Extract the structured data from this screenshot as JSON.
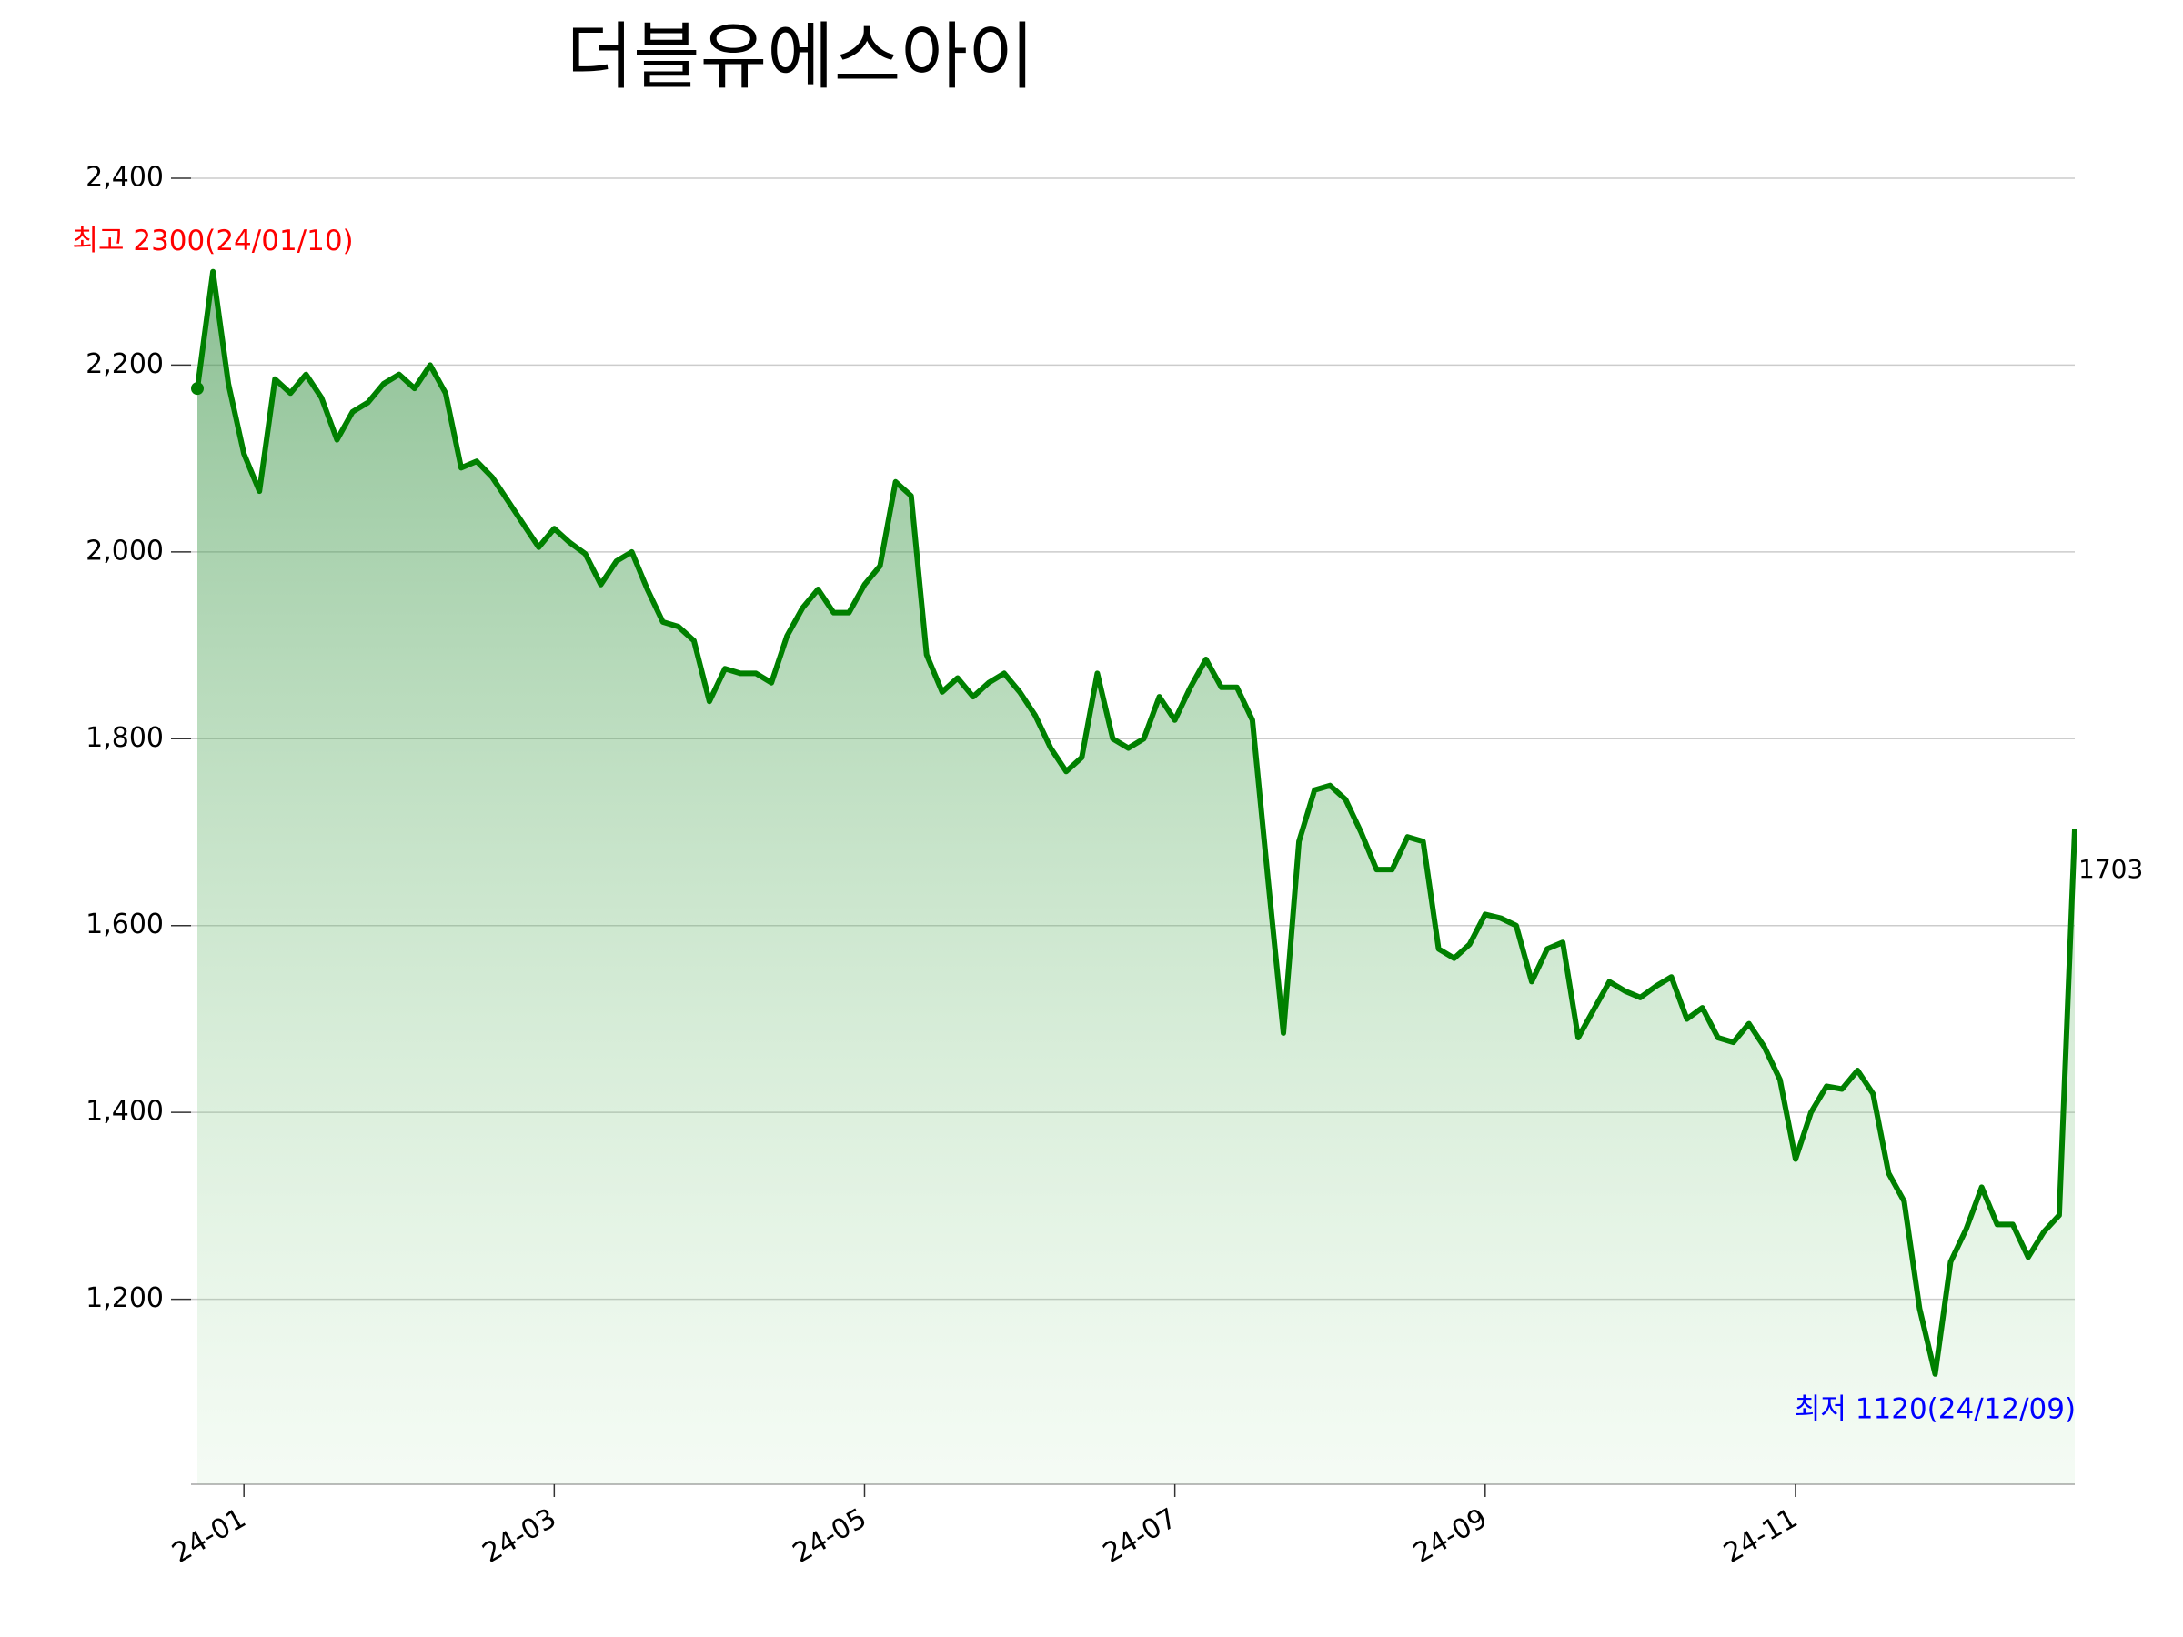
{
  "chart_data": {
    "type": "line",
    "title": "더블유에스아이",
    "categories": [
      null,
      null,
      null,
      "24-01",
      null,
      null,
      null,
      null,
      null,
      null,
      null,
      null,
      null,
      null,
      null,
      null,
      null,
      null,
      null,
      null,
      null,
      null,
      null,
      "24-03",
      null,
      null,
      null,
      null,
      null,
      null,
      null,
      null,
      null,
      null,
      null,
      null,
      null,
      null,
      null,
      null,
      null,
      null,
      null,
      "24-05",
      null,
      null,
      null,
      null,
      null,
      null,
      null,
      null,
      null,
      null,
      null,
      null,
      null,
      null,
      null,
      null,
      null,
      null,
      null,
      "24-07",
      null,
      null,
      null,
      null,
      null,
      null,
      null,
      null,
      null,
      null,
      null,
      null,
      null,
      null,
      null,
      null,
      null,
      null,
      null,
      "24-09",
      null,
      null,
      null,
      null,
      null,
      null,
      null,
      null,
      null,
      null,
      null,
      null,
      null,
      null,
      null,
      null,
      null,
      null,
      null,
      "24-11",
      null,
      null,
      null,
      null,
      null,
      null,
      null,
      null,
      null,
      null,
      null,
      null,
      null,
      null,
      null,
      null,
      null,
      null
    ],
    "series": [
      {
        "color": "#008000",
        "values": [
          2175,
          2300,
          2180,
          2105,
          2065,
          2185,
          2170,
          2190,
          2165,
          2120,
          2150,
          2160,
          2180,
          2190,
          2175,
          2200,
          2170,
          2090,
          2097,
          2080,
          2055,
          2030,
          2005,
          2025,
          2010,
          1998,
          1965,
          1990,
          2000,
          1960,
          1925,
          1920,
          1905,
          1840,
          1875,
          1870,
          1870,
          1860,
          1910,
          1940,
          1960,
          1935,
          1935,
          1965,
          1985,
          2075,
          2060,
          1890,
          1850,
          1865,
          1845,
          1860,
          1870,
          1850,
          1825,
          1790,
          1765,
          1780,
          1870,
          1800,
          1790,
          1800,
          1845,
          1820,
          1855,
          1885,
          1855,
          1855,
          1820,
          1650,
          1485,
          1690,
          1745,
          1750,
          1735,
          1700,
          1660,
          1660,
          1695,
          1690,
          1575,
          1565,
          1580,
          1612,
          1608,
          1600,
          1540,
          1575,
          1582,
          1480,
          1510,
          1540,
          1530,
          1523,
          1535,
          1545,
          1500,
          1512,
          1480,
          1475,
          1495,
          1470,
          1435,
          1350,
          1400,
          1428,
          1425,
          1445,
          1420,
          1335,
          1305,
          1190,
          1120,
          1240,
          1275,
          1320,
          1280,
          1280,
          1245,
          1272,
          1290,
          1703
        ]
      }
    ],
    "ylim": [
      1002,
      2400
    ],
    "yticks": [
      {
        "value": 1200,
        "label": "1,200"
      },
      {
        "value": 1400,
        "label": "1,400"
      },
      {
        "value": 1600,
        "label": "1,600"
      },
      {
        "value": 1800,
        "label": "1,800"
      },
      {
        "value": 2000,
        "label": "2,000"
      },
      {
        "value": 2200,
        "label": "2,200"
      },
      {
        "value": 2400,
        "label": "2,400"
      }
    ],
    "grid": true,
    "annotations": [
      {
        "text": "최고 2300(24/01/10)",
        "color": "#ff0000"
      },
      {
        "text": "최저 1120(24/12/09)",
        "color": "#0000ff"
      }
    ]
  }
}
